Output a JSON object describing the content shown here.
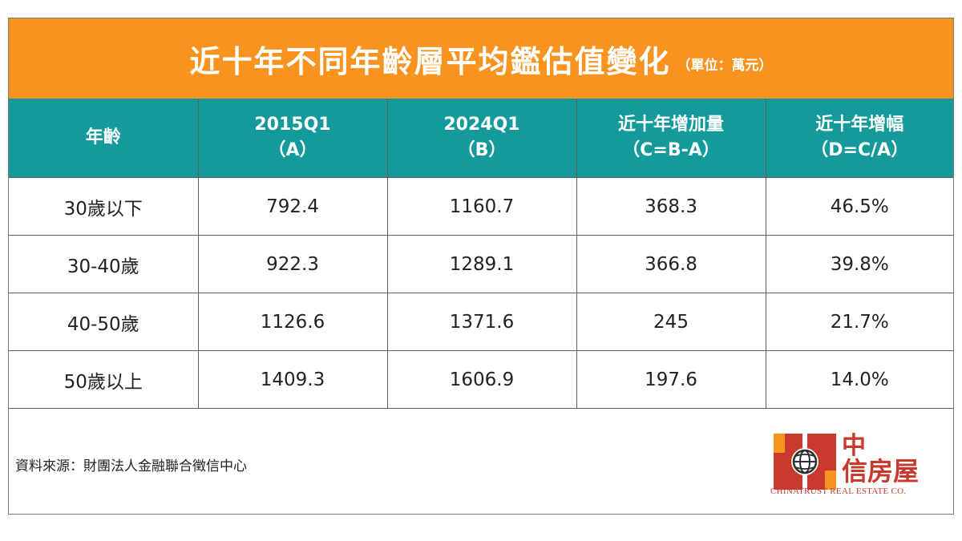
{
  "title": "近十年不同年齡層平均鑑估值變化",
  "unit": "（單位：萬元）",
  "chart_data": {
    "type": "table",
    "columns": [
      {
        "line1": "年齡",
        "line2": ""
      },
      {
        "line1": "2015Q1",
        "line2": "（A）"
      },
      {
        "line1": "2024Q1",
        "line2": "（B）"
      },
      {
        "line1": "近十年增加量",
        "line2": "（C=B-A）"
      },
      {
        "line1": "近十年增幅",
        "line2": "（D=C/A）"
      }
    ],
    "rows": [
      [
        "30歲以下",
        "792.4",
        "1160.7",
        "368.3",
        "46.5%"
      ],
      [
        "30-40歲",
        "922.3",
        "1289.1",
        "366.8",
        "39.8%"
      ],
      [
        "40-50歲",
        "1126.6",
        "1371.6",
        "245",
        "21.7%"
      ],
      [
        "50歲以上",
        "1409.3",
        "1606.9",
        "197.6",
        "14.0%"
      ]
    ]
  },
  "source": "資料來源：財團法人金融聯合徵信中心",
  "logo": {
    "cn_line1": "中",
    "cn_line2": "信房屋",
    "en": "CHINATRUST REAL ESTATE CO.",
    "colors": {
      "red": "#c8392e",
      "orange": "#f7931e",
      "teal": "#149a9a"
    }
  }
}
